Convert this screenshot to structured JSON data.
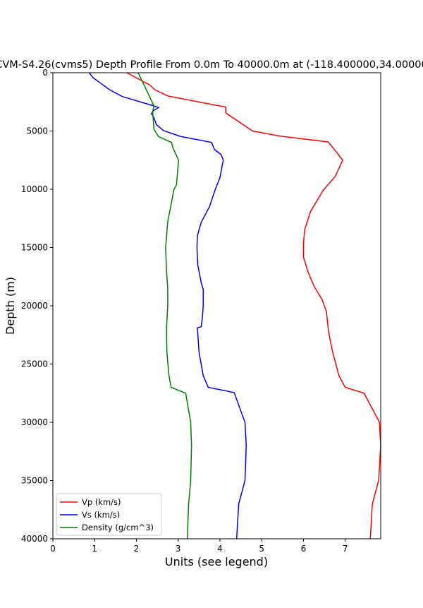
{
  "chart_data": {
    "type": "line",
    "title": "CVM-S4.26(cvms5) Depth Profile From 0.0m To 40000.0m at (-118.400000,34.00000",
    "xlabel": "Units (see legend)",
    "ylabel": "Depth (m)",
    "xlim": [
      0,
      7.85
    ],
    "ylim": [
      40000,
      0
    ],
    "y_inverted": true,
    "grid": false,
    "legend_position": "lower-left",
    "xticks": [
      "0",
      "1",
      "2",
      "3",
      "4",
      "5",
      "6",
      "7"
    ],
    "yticks": [
      "0",
      "5000",
      "10000",
      "15000",
      "20000",
      "25000",
      "30000",
      "35000",
      "40000"
    ],
    "series": [
      {
        "name": "Vp (km/s)",
        "color": "#ff0000",
        "points": [
          [
            1.77,
            0
          ],
          [
            2.31,
            1030
          ],
          [
            2.45,
            1470
          ],
          [
            2.76,
            2000
          ],
          [
            4.14,
            2950
          ],
          [
            4.14,
            3450
          ],
          [
            4.73,
            4870
          ],
          [
            4.78,
            5000
          ],
          [
            5.46,
            5450
          ],
          [
            6.59,
            5940
          ],
          [
            6.76,
            6670
          ],
          [
            6.94,
            7500
          ],
          [
            6.76,
            8900
          ],
          [
            6.54,
            9800
          ],
          [
            6.47,
            10100
          ],
          [
            6.17,
            11900
          ],
          [
            6.03,
            13450
          ],
          [
            6.0,
            14660
          ],
          [
            6.0,
            15800
          ],
          [
            6.1,
            17000
          ],
          [
            6.25,
            18300
          ],
          [
            6.45,
            19500
          ],
          [
            6.55,
            20500
          ],
          [
            6.6,
            22200
          ],
          [
            6.7,
            24000
          ],
          [
            6.85,
            26000
          ],
          [
            7.0,
            27000
          ],
          [
            7.45,
            27500
          ],
          [
            7.82,
            30000
          ],
          [
            7.85,
            32000
          ],
          [
            7.8,
            35000
          ],
          [
            7.65,
            37000
          ],
          [
            7.6,
            40000
          ]
        ]
      },
      {
        "name": "Vs (km/s)",
        "color": "#0000ff",
        "points": [
          [
            0.87,
            0
          ],
          [
            0.96,
            420
          ],
          [
            1.35,
            1440
          ],
          [
            1.66,
            2040
          ],
          [
            2.42,
            2850
          ],
          [
            2.53,
            2990
          ],
          [
            2.41,
            3250
          ],
          [
            2.36,
            3500
          ],
          [
            2.42,
            3860
          ],
          [
            2.48,
            4460
          ],
          [
            2.65,
            4970
          ],
          [
            3.07,
            5480
          ],
          [
            3.8,
            5980
          ],
          [
            3.87,
            6590
          ],
          [
            4.03,
            7030
          ],
          [
            4.08,
            7500
          ],
          [
            4.0,
            9000
          ],
          [
            3.89,
            10000
          ],
          [
            3.75,
            11500
          ],
          [
            3.55,
            12850
          ],
          [
            3.46,
            14000
          ],
          [
            3.45,
            15000
          ],
          [
            3.47,
            16500
          ],
          [
            3.55,
            18000
          ],
          [
            3.6,
            18600
          ],
          [
            3.6,
            20000
          ],
          [
            3.58,
            21000
          ],
          [
            3.55,
            21800
          ],
          [
            3.46,
            21900
          ],
          [
            3.5,
            24000
          ],
          [
            3.6,
            26000
          ],
          [
            3.72,
            27000
          ],
          [
            4.34,
            27450
          ],
          [
            4.6,
            30000
          ],
          [
            4.63,
            32000
          ],
          [
            4.6,
            35000
          ],
          [
            4.45,
            37000
          ],
          [
            4.4,
            40000
          ]
        ]
      },
      {
        "name": "Density (g/cm^3)",
        "color": "#008000",
        "points": [
          [
            2.04,
            0
          ],
          [
            2.14,
            720
          ],
          [
            2.42,
            2850
          ],
          [
            2.39,
            3340
          ],
          [
            2.42,
            4860
          ],
          [
            2.53,
            5480
          ],
          [
            2.84,
            5980
          ],
          [
            2.88,
            6490
          ],
          [
            3.01,
            7500
          ],
          [
            2.96,
            9620
          ],
          [
            2.9,
            10000
          ],
          [
            2.75,
            12800
          ],
          [
            2.7,
            15000
          ],
          [
            2.72,
            17000
          ],
          [
            2.75,
            18500
          ],
          [
            2.75,
            20000
          ],
          [
            2.72,
            22000
          ],
          [
            2.73,
            24000
          ],
          [
            2.78,
            26000
          ],
          [
            2.83,
            27000
          ],
          [
            3.18,
            27500
          ],
          [
            3.3,
            30000
          ],
          [
            3.32,
            32000
          ],
          [
            3.3,
            35000
          ],
          [
            3.25,
            37000
          ],
          [
            3.22,
            40000
          ]
        ]
      }
    ]
  }
}
